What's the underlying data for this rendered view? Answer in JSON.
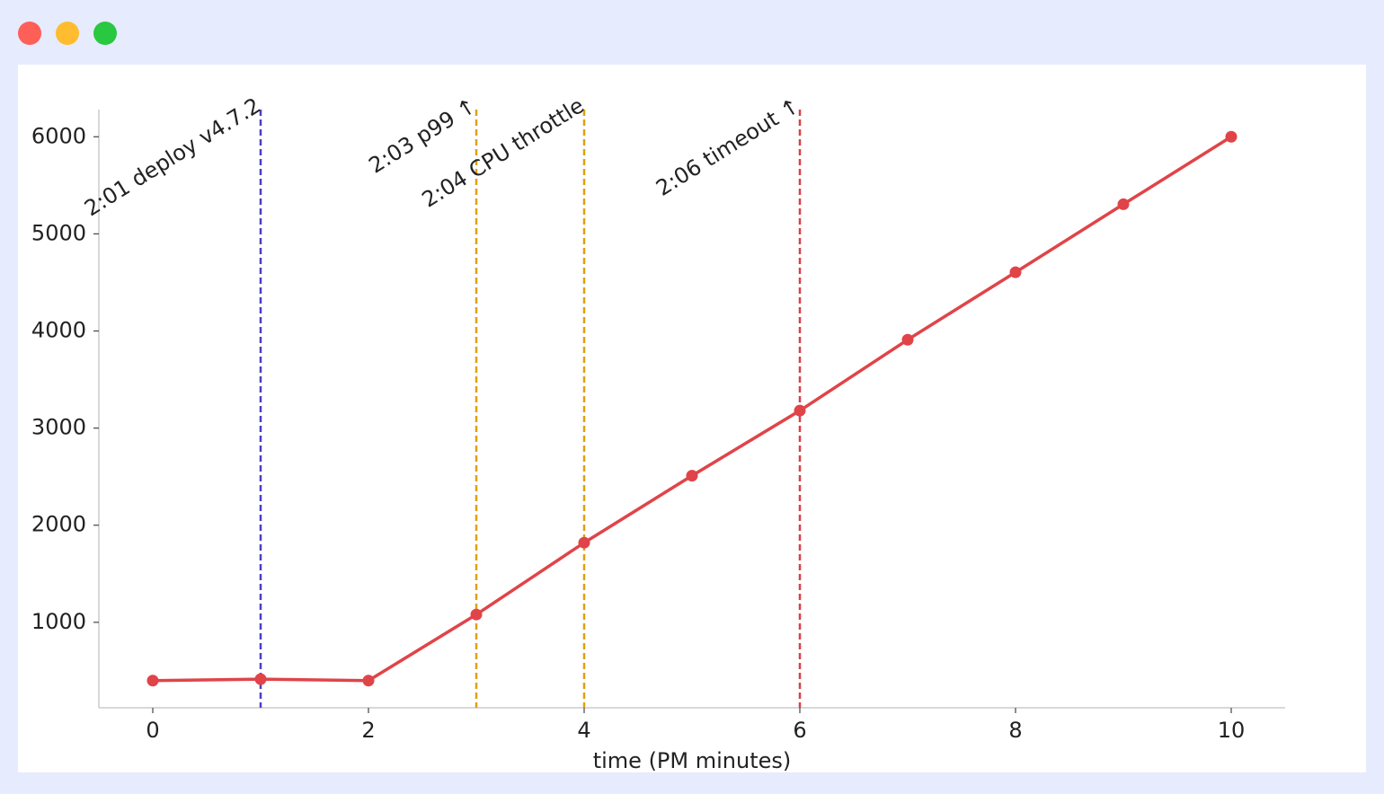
{
  "chart_data": {
    "type": "line",
    "x": [
      0,
      1,
      2,
      3,
      4,
      5,
      6,
      7,
      8,
      9,
      10
    ],
    "values": [
      400,
      415,
      400,
      1080,
      1820,
      2510,
      3180,
      3910,
      4605,
      5305,
      6000
    ],
    "color": "#e04448",
    "x_label": "time (PM minutes)",
    "xlim": [
      -0.5,
      10.5
    ],
    "xticks": [
      0,
      2,
      4,
      6,
      8,
      10
    ],
    "ylim": [
      120,
      6280
    ],
    "yticks": [
      1000,
      2000,
      3000,
      4000,
      5000,
      6000
    ],
    "events": [
      {
        "x": 1,
        "label": "2:01 deploy v4.7.2",
        "color": "#4b3fc4"
      },
      {
        "x": 3,
        "label": "2:03 p99 ↑",
        "color": "#e0a010"
      },
      {
        "x": 4,
        "label": "2:04 CPU throttle",
        "color": "#e0a010"
      },
      {
        "x": 6,
        "label": "2:06 timeout ↑",
        "color": "#d94048"
      }
    ]
  }
}
